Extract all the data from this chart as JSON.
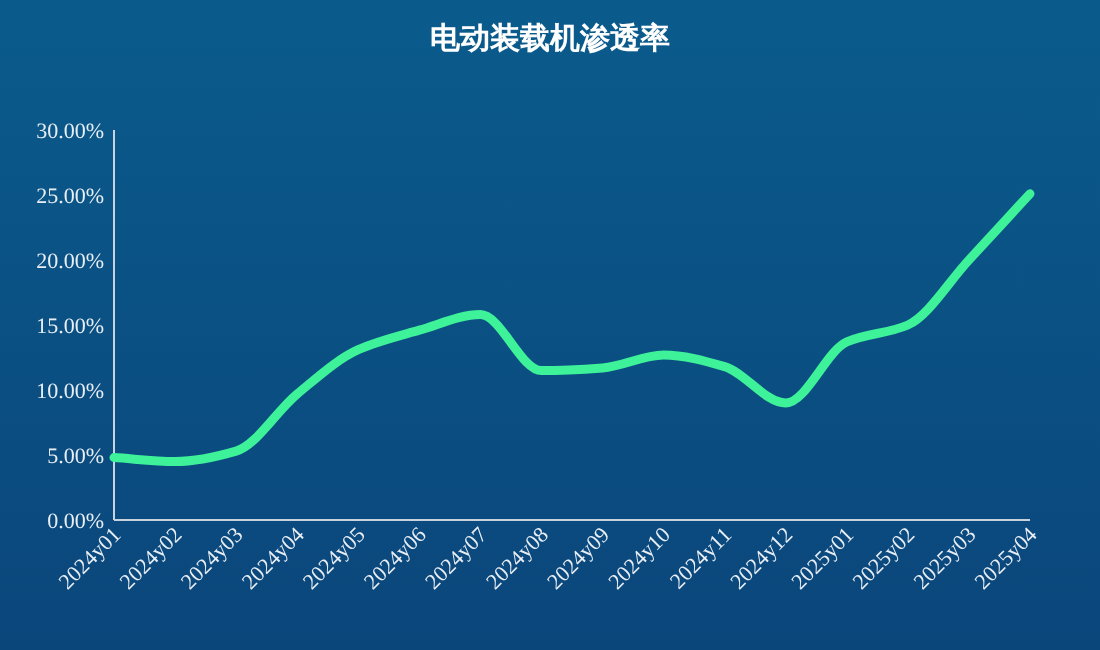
{
  "chart_data": {
    "type": "line",
    "title": "电动装载机渗透率",
    "categories": [
      "2024y01",
      "2024y02",
      "2024y03",
      "2024y04",
      "2024y05",
      "2024y06",
      "2024y07",
      "2024y08",
      "2024y09",
      "2024y10",
      "2024y11",
      "2024y12",
      "2025y01",
      "2025y02",
      "2025y03",
      "2025y04"
    ],
    "series": [
      {
        "color": "#3ef29a",
        "values": [
          4.8,
          4.5,
          5.3,
          9.7,
          13.1,
          14.6,
          15.8,
          11.5,
          11.7,
          12.7,
          11.8,
          9.0,
          13.7,
          15.0,
          20.0,
          25.1
        ]
      }
    ],
    "ylim": [
      0,
      30
    ],
    "yticks": [
      {
        "value": 0,
        "label": "0.00%"
      },
      {
        "value": 5,
        "label": "5.00%"
      },
      {
        "value": 10,
        "label": "10.00%"
      },
      {
        "value": 15,
        "label": "15.00%"
      },
      {
        "value": 20,
        "label": "20.00%"
      },
      {
        "value": 25,
        "label": "25.00%"
      },
      {
        "value": 30,
        "label": "30.00%"
      }
    ],
    "grid": false,
    "marker": "none",
    "line_style": "solid"
  }
}
